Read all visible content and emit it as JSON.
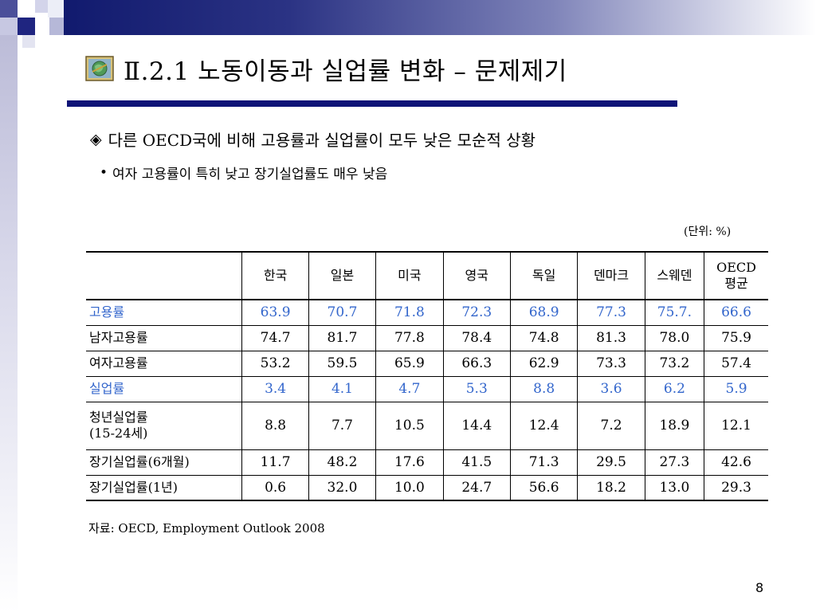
{
  "slide": {
    "title": "Ⅱ.2.1 노동이동과 실업률 변화 – 문제제기",
    "lead_bullet": "◈",
    "lead_text": "다른 OECD국에 비해 고용률과 실업률이 모두 낮은 모순적 상황",
    "sub_bullet": "•",
    "sub_text": "여자 고용률이 특히 낮고 장기실업률도 매우 낮음",
    "unit_label": "(단위:  %)",
    "source": "자료: OECD, Employment Outlook 2008",
    "page_number": "8",
    "title_icon": "globe-picture-icon",
    "accent_color": "#0f1477",
    "highlight_color": "#3366cc"
  },
  "table": {
    "columns": [
      "",
      "한국",
      "일본",
      "미국",
      "영국",
      "독일",
      "덴마크",
      "스웨덴",
      "OECD\n평균"
    ],
    "rows": [
      {
        "label": "고용률",
        "highlight": true,
        "values": [
          "63.9",
          "70.7",
          "71.8",
          "72.3",
          "68.9",
          "77.3",
          "75.7.",
          "66.6"
        ]
      },
      {
        "label": "남자고용률",
        "highlight": false,
        "values": [
          "74.7",
          "81.7",
          "77.8",
          "78.4",
          "74.8",
          "81.3",
          "78.0",
          "75.9"
        ]
      },
      {
        "label": "여자고용률",
        "highlight": false,
        "values": [
          "53.2",
          "59.5",
          "65.9",
          "66.3",
          "62.9",
          "73.3",
          "73.2",
          "57.4"
        ]
      },
      {
        "label": "실업률",
        "highlight": true,
        "values": [
          "3.4",
          "4.1",
          "4.7",
          "5.3",
          "8.8",
          "3.6",
          "6.2",
          "5.9"
        ]
      },
      {
        "label": "청년실업률\n(15-24세)",
        "highlight": false,
        "values": [
          "8.8",
          "7.7",
          "10.5",
          "14.4",
          "12.4",
          "7.2",
          "18.9",
          "12.1"
        ]
      },
      {
        "label": "장기실업률(6개월)",
        "highlight": false,
        "values": [
          "11.7",
          "48.2",
          "17.6",
          "41.5",
          "71.3",
          "29.5",
          "27.3",
          "42.6"
        ]
      },
      {
        "label": "장기실업률(1년)",
        "highlight": false,
        "values": [
          "0.6",
          "32.0",
          "10.0",
          "24.7",
          "56.6",
          "18.2",
          "13.0",
          "29.3"
        ]
      }
    ]
  }
}
